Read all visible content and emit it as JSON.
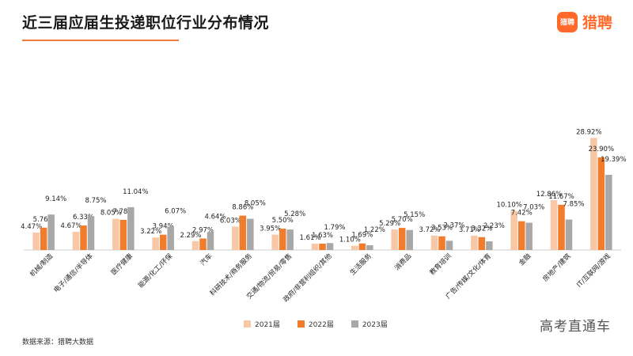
{
  "header": {
    "title": "近三届应届生投递职位行业分布情况",
    "brand_badge": "猎聘",
    "brand_name": "猎聘"
  },
  "footer": {
    "source": "数据来源：猎聘大数据",
    "watermark": "高考直通车"
  },
  "colors": {
    "series_2021": "#f7c7a6",
    "series_2022": "#f07c2c",
    "series_2023": "#a8a8a8",
    "accent": "#ff6a2a"
  },
  "chart_data": {
    "type": "bar",
    "categories": [
      "机械/制造",
      "电子/通信/半导体",
      "医疗健康",
      "能源/化工/环保",
      "汽车",
      "科研技术/商务服务",
      "交通/物流/贸易/零售",
      "政府/非营利组织/其他",
      "生活服务",
      "消费品",
      "教育培训",
      "广告/传媒/文化/体育",
      "金融",
      "房地产/建筑",
      "IT/互联网/游戏"
    ],
    "series": [
      {
        "name": "2021届",
        "values": [
          4.47,
          4.67,
          8.05,
          3.22,
          2.29,
          6.03,
          3.95,
          1.61,
          1.1,
          5.29,
          3.72,
          3.71,
          10.1,
          12.86,
          28.92
        ],
        "labels": [
          "4.47%",
          "4.67%",
          "8.05%",
          "3.22%",
          "2.29%",
          "6.03%",
          "3.95%",
          "1.61%",
          "1.10%",
          "5.29%",
          "3.72%",
          "3.71%",
          "10.10%",
          "12.86%",
          "28.92%"
        ]
      },
      {
        "name": "2022届",
        "values": [
          5.76,
          6.33,
          7.78,
          3.94,
          2.97,
          8.86,
          5.5,
          1.63,
          1.69,
          5.7,
          3.53,
          3.32,
          7.42,
          11.67,
          23.9
        ],
        "labels": [
          "5.76%",
          "6.33%",
          "7.78%",
          "3.94%",
          "2.97%",
          "8.86%",
          "5.50%",
          "1.63%",
          "1.69%",
          "5.70%",
          "3.53%",
          "3.32%",
          "7.42%",
          "11.67%",
          "23.90%"
        ]
      },
      {
        "name": "2023届",
        "values": [
          9.14,
          8.75,
          11.04,
          6.07,
          4.64,
          8.05,
          5.28,
          1.79,
          1.22,
          5.15,
          2.37,
          2.23,
          7.03,
          7.85,
          19.39
        ],
        "labels": [
          "9.14%",
          "8.75%",
          "11.04%",
          "6.07%",
          "4.64%",
          "8.05%",
          "5.28%",
          "1.79%",
          "1.22%",
          "5.15%",
          "2.37%",
          "2.23%",
          "7.03%",
          "7.85%",
          "19.39%"
        ]
      }
    ],
    "ylim": [
      0,
      30
    ],
    "legend_position": "bottom-center",
    "grid": false
  }
}
